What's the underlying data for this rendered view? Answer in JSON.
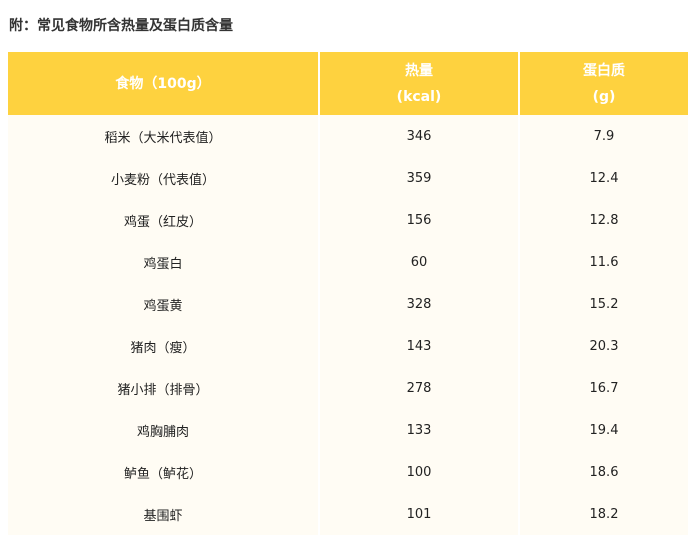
{
  "title": "附：常见食物所含热量及蛋白质含量",
  "header": {
    "food": "食物（100g）",
    "energy": "热量",
    "energy_unit": "(kcal)",
    "protein": "蛋白质",
    "protein_unit": "(g)"
  },
  "rows": [
    {
      "food": "稻米（大米代表值）",
      "energy": "346",
      "protein": "7.9"
    },
    {
      "food": "小麦粉（代表值）",
      "energy": "359",
      "protein": "12.4"
    },
    {
      "food": "鸡蛋（红皮）",
      "energy": "156",
      "protein": "12.8"
    },
    {
      "food": "鸡蛋白",
      "energy": "60",
      "protein": "11.6"
    },
    {
      "food": "鸡蛋黄",
      "energy": "328",
      "protein": "15.2"
    },
    {
      "food": "猪肉（瘦）",
      "energy": "143",
      "protein": "20.3"
    },
    {
      "food": "猪小排（排骨）",
      "energy": "278",
      "protein": "16.7"
    },
    {
      "food": "鸡胸脯肉",
      "energy": "133",
      "protein": "19.4"
    },
    {
      "food": "鲈鱼（鲈花）",
      "energy": "100",
      "protein": "18.6"
    },
    {
      "food": "基围虾",
      "energy": "101",
      "protein": "18.2"
    }
  ],
  "colors": {
    "header": "#fed23f",
    "row": "#fffcf4"
  }
}
